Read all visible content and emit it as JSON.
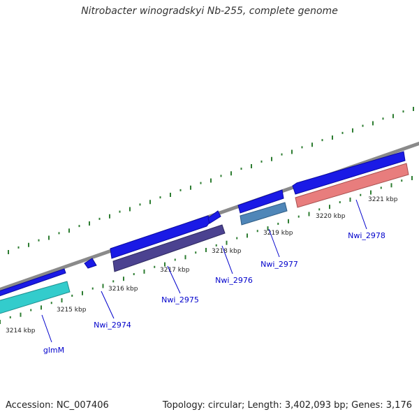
{
  "title": "Nitrobacter winogradskyi Nb-255, complete genome",
  "accession_label": "Accession: NC_007406",
  "summary_label": "Topology: circular; Length: 3,402,093 bp; Genes: 3,176",
  "colors": {
    "backbone": "#8a8a8a",
    "tick": "#2e7d32",
    "gene_arrow": "#1a1ae6",
    "feature_1": "#33cccc",
    "feature_2": "#4b4290",
    "feature_3": "#4f86b8",
    "feature_4": "#e87d7d",
    "label_text": "#0000cc",
    "kbp_text": "#222222"
  },
  "kbp_labels": [
    "3214 kbp",
    "3215 kbp",
    "3216 kbp",
    "3217 kbp",
    "3218 kbp",
    "3219 kbp",
    "3220 kbp",
    "3221 kbp"
  ],
  "gene_labels": [
    "glmM",
    "Nwi_2974",
    "Nwi_2975",
    "Nwi_2976",
    "Nwi_2977",
    "Nwi_2978"
  ]
}
